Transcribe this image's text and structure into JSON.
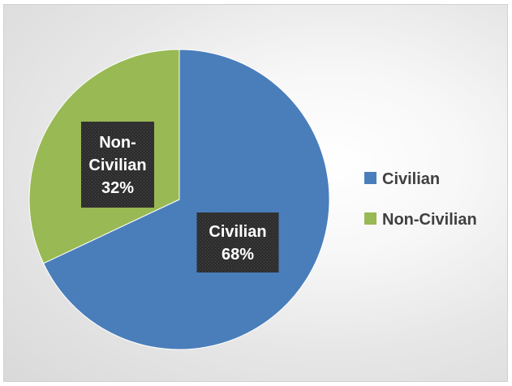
{
  "chart_data": {
    "type": "pie",
    "title": "",
    "categories": [
      "Civilian",
      "Non-Civilian"
    ],
    "values": [
      68,
      32
    ],
    "data_labels": [
      [
        "Civilian",
        "68%"
      ],
      [
        "Non-",
        "Civilian",
        "32%"
      ]
    ],
    "colors": [
      "#4a7ebb",
      "#98b954"
    ],
    "legend_position": "right",
    "start_angle_deg": 0,
    "direction": "clockwise"
  }
}
